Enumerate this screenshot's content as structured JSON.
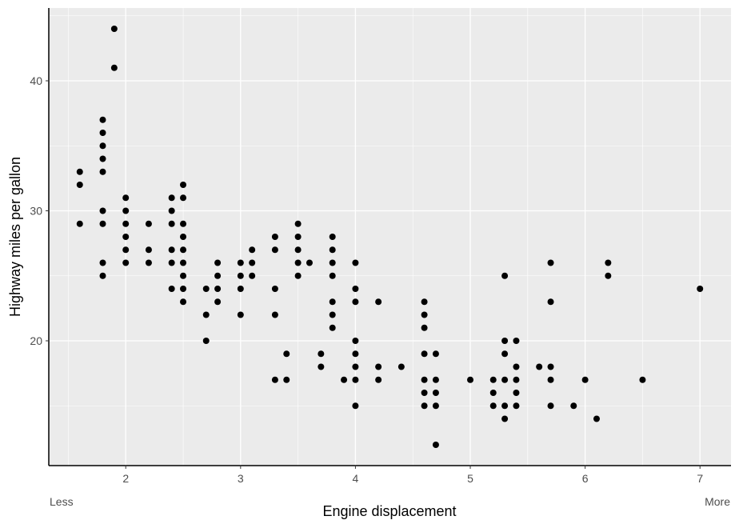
{
  "chart_data": {
    "type": "scatter",
    "x_label": "Engine displacement",
    "y_label": "Highway miles per gallon",
    "annotations": [
      "Less",
      "More"
    ],
    "color": "#000000",
    "grid": true,
    "xlim": [
      1.33,
      7.27
    ],
    "ylim": [
      10.4,
      45.6
    ],
    "xticks": [
      2,
      3,
      4,
      5,
      6,
      7
    ],
    "yticks": [
      20,
      30,
      40
    ],
    "x": [
      1.6,
      1.6,
      1.6,
      1.8,
      1.8,
      1.8,
      1.8,
      1.8,
      1.8,
      1.8,
      1.8,
      1.8,
      1.9,
      1.9,
      2.0,
      2.0,
      2.0,
      2.0,
      2.0,
      2.0,
      2.2,
      2.2,
      2.2,
      2.4,
      2.4,
      2.4,
      2.4,
      2.4,
      2.4,
      2.5,
      2.5,
      2.5,
      2.5,
      2.5,
      2.5,
      2.5,
      2.5,
      2.5,
      2.7,
      2.7,
      2.7,
      2.8,
      2.8,
      2.8,
      2.8,
      3.0,
      3.0,
      3.0,
      3.0,
      3.1,
      3.1,
      3.1,
      3.3,
      3.3,
      3.3,
      3.3,
      3.3,
      3.4,
      3.4,
      3.5,
      3.5,
      3.5,
      3.5,
      3.5,
      3.6,
      3.7,
      3.7,
      3.8,
      3.8,
      3.8,
      3.8,
      3.8,
      3.8,
      3.8,
      3.9,
      4.0,
      4.0,
      4.0,
      4.0,
      4.0,
      4.0,
      4.0,
      4.0,
      4.2,
      4.2,
      4.2,
      4.4,
      4.6,
      4.6,
      4.6,
      4.6,
      4.6,
      4.6,
      4.6,
      4.7,
      4.7,
      4.7,
      4.7,
      4.7,
      5.0,
      5.2,
      5.2,
      5.2,
      5.3,
      5.3,
      5.3,
      5.3,
      5.3,
      5.3,
      5.4,
      5.4,
      5.4,
      5.4,
      5.4,
      5.6,
      5.7,
      5.7,
      5.7,
      5.7,
      5.7,
      5.9,
      6.0,
      6.1,
      6.2,
      6.2,
      6.5,
      7.0
    ],
    "y": [
      33,
      32,
      29,
      37,
      36,
      35,
      34,
      33,
      30,
      29,
      26,
      25,
      44,
      41,
      31,
      30,
      29,
      28,
      27,
      26,
      29,
      27,
      26,
      31,
      30,
      29,
      27,
      26,
      24,
      32,
      31,
      29,
      28,
      27,
      26,
      25,
      24,
      23,
      24,
      22,
      20,
      26,
      25,
      24,
      23,
      26,
      25,
      24,
      22,
      27,
      26,
      25,
      28,
      27,
      24,
      22,
      17,
      19,
      17,
      29,
      28,
      27,
      26,
      25,
      26,
      19,
      18,
      28,
      27,
      26,
      25,
      23,
      22,
      21,
      17,
      26,
      24,
      23,
      20,
      19,
      18,
      17,
      15,
      23,
      18,
      17,
      18,
      23,
      22,
      21,
      19,
      17,
      16,
      15,
      19,
      17,
      16,
      15,
      12,
      17,
      17,
      16,
      15,
      25,
      20,
      19,
      17,
      15,
      14,
      20,
      18,
      17,
      16,
      15,
      18,
      26,
      23,
      18,
      17,
      15,
      15,
      17,
      14,
      26,
      25,
      17,
      24
    ]
  }
}
